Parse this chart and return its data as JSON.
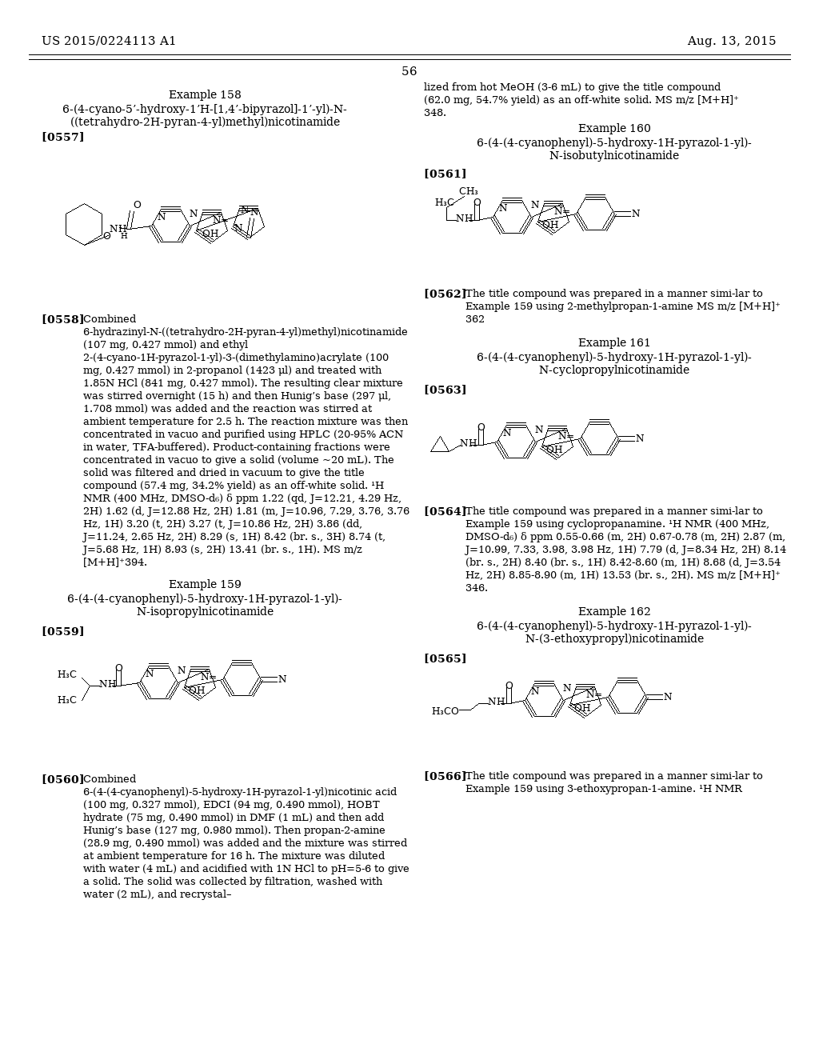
{
  "bg_color": "#ffffff",
  "header_left": "US 2015/0224113 A1",
  "header_right": "Aug. 13, 2015",
  "page_number": "56",
  "ex158_title": "Example 158",
  "ex158_name1": "6-(4-cyano-5’-hydroxy-1’H-[1,4’-bipyrazol]-1’-yl)-N-",
  "ex158_name2": "((tetrahydro-2H-pyran-4-yl)methyl)nicotinamide",
  "para0557": "[0557]",
  "para0558_label": "[0558]",
  "para0558_body": "Combined 6-hydrazinyl-N-((tetrahydro-2H-pyran-4-yl)methyl)nicotinamide (107 mg, 0.427 mmol) and ethyl 2-(4-cyano-1H-pyrazol-1-yl)-3-(dimethylamino)acrylate (100 mg, 0.427 mmol) in 2-propanol (1423 μl) and treated with 1.85N HCl (841 mg, 0.427 mmol). The resulting clear mixture was stirred overnight (15 h) and then Hunig’s base (297 μl, 1.708 mmol) was added and the reaction was stirred at ambient temperature for 2.5 h. The reaction mixture was then concentrated in vacuo and purified using HPLC (20-95% ACN in water, TFA-buffered). Product-containing fractions were concentrated in vacuo to give a solid (volume ~20 mL). The solid was filtered and dried in vacuum to give the title compound (57.4 mg, 34.2% yield) as an off-white solid. ¹H NMR (400 MHz, DMSO-d₆) δ ppm 1.22 (qd, J=12.21, 4.29 Hz, 2H) 1.62 (d, J=12.88 Hz, 2H) 1.81 (m, J=10.96, 7.29, 3.76, 3.76 Hz, 1H) 3.20 (t, 2H) 3.27 (t, J=10.86 Hz, 2H) 3.86 (dd, J=11.24, 2.65 Hz, 2H) 8.29 (s, 1H) 8.42 (br. s., 3H) 8.74 (t, J=5.68 Hz, 1H) 8.93 (s, 2H) 13.41 (br. s., 1H). MS m/z [M+H]⁺394.",
  "ex159_title": "Example 159",
  "ex159_name1": "6-(4-(4-cyanophenyl)-5-hydroxy-1H-pyrazol-1-yl)-",
  "ex159_name2": "N-isopropylnicotinamide",
  "para0559": "[0559]",
  "para0560_label": "[0560]",
  "para0560_body": "Combined  6-(4-(4-cyanophenyl)-5-hydroxy-1H-pyrazol-1-yl)nicotinic acid (100 mg, 0.327 mmol), EDCI (94 mg, 0.490 mmol), HOBT hydrate (75 mg, 0.490 mmol) in DMF (1 mL) and then add Hunig’s base (127 mg, 0.980 mmol). Then propan-2-amine (28.9 mg, 0.490 mmol) was added and the mixture was stirred at ambient temperature for 16 h. The mixture was diluted with water (4 mL) and acidified with 1N HCl to pH=5-6 to give a solid. The solid was collected by filtration, washed with water (2 mL), and recrystal–",
  "rc_cont1": "lized from hot MeOH (3-6 mL) to give the title compound",
  "rc_cont2": "(62.0 mg, 54.7% yield) as an off-white solid. MS m/z [M+H]⁺",
  "rc_cont3": "348.",
  "ex160_title": "Example 160",
  "ex160_name1": "6-(4-(4-cyanophenyl)-5-hydroxy-1H-pyrazol-1-yl)-",
  "ex160_name2": "N-isobutylnicotinamide",
  "para0561": "[0561]",
  "para0562_label": "[0562]",
  "para0562_body": "The title compound was prepared in a manner simi-lar to Example 159 using 2-methylpropan-1-amine MS m/z [M+H]⁺ 362",
  "ex161_title": "Example 161",
  "ex161_name1": "6-(4-(4-cyanophenyl)-5-hydroxy-1H-pyrazol-1-yl)-",
  "ex161_name2": "N-cyclopropylnicotinamide",
  "para0563": "[0563]",
  "para0564_label": "[0564]",
  "para0564_body": "The title compound was prepared in a manner simi-lar to Example 159 using cyclopropanamine. ¹H NMR (400 MHz, DMSO-d₆) δ ppm 0.55-0.66 (m, 2H) 0.67-0.78 (m, 2H) 2.87 (m, J=10.99, 7.33, 3.98, 3.98 Hz, 1H) 7.79 (d, J=8.34 Hz, 2H) 8.14 (br. s., 2H) 8.40 (br. s., 1H) 8.42-8.60 (m, 1H) 8.68 (d, J=3.54 Hz, 2H) 8.85-8.90 (m, 1H) 13.53 (br. s., 2H). MS m/z [M+H]⁺ 346.",
  "ex162_title": "Example 162",
  "ex162_name1": "6-(4-(4-cyanophenyl)-5-hydroxy-1H-pyrazol-1-yl)-",
  "ex162_name2": "N-(3-ethoxypropyl)nicotinamide",
  "para0565": "[0565]",
  "para0566_label": "[0566]",
  "para0566_body": "The title compound was prepared in a manner simi-lar to Example 159 using 3-ethoxypropan-1-amine. ¹H NMR"
}
